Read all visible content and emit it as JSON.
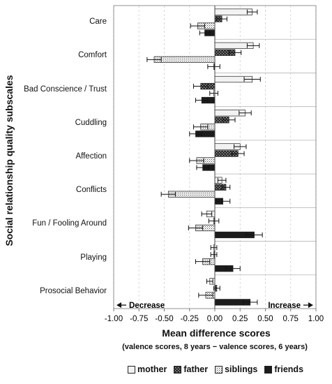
{
  "chart_data": {
    "type": "bar",
    "orientation": "horizontal",
    "ylabel": "Social relationship quality subscales",
    "xlabel": "Mean difference scores",
    "xlabel_sub": "(valence scores, 8 years − valence scores, 6 years)",
    "annotations": {
      "left": "Decrease",
      "right": "Increase"
    },
    "xlim": [
      -1.0,
      1.0
    ],
    "xticks": [
      "-1.00",
      "-0.75",
      "-0.50",
      "-0.25",
      "0.00",
      "0.25",
      "0.50",
      "0.75",
      "1.00"
    ],
    "grid": true,
    "legend_position": "bottom",
    "categories": [
      "Care",
      "Comfort",
      "Bad Conscience / Trust",
      "Cuddling",
      "Affection",
      "Conflicts",
      "Fun / Fooling Around",
      "Playing",
      "Prosocial Behavior"
    ],
    "series": [
      {
        "name": "mother",
        "values": [
          0.37,
          0.38,
          0.37,
          0.3,
          0.25,
          0.07,
          -0.08,
          -0.01,
          -0.05
        ],
        "errors": [
          0.05,
          0.06,
          0.08,
          0.06,
          0.06,
          0.04,
          0.05,
          0.03,
          0.03
        ]
      },
      {
        "name": "father",
        "values": [
          0.07,
          0.2,
          -0.14,
          0.14,
          0.23,
          0.11,
          -0.01,
          -0.01,
          0.02
        ],
        "errors": [
          0.05,
          0.06,
          0.07,
          0.06,
          0.06,
          0.04,
          0.05,
          0.03,
          0.03
        ]
      },
      {
        "name": "siblings",
        "values": [
          -0.17,
          -0.6,
          -0.01,
          -0.14,
          -0.18,
          -0.46,
          -0.19,
          -0.12,
          -0.09
        ],
        "errors": [
          0.07,
          0.07,
          0.04,
          0.07,
          0.07,
          0.07,
          0.07,
          0.07,
          0.07
        ]
      },
      {
        "name": "friends",
        "values": [
          -0.1,
          -0.01,
          -0.13,
          -0.19,
          -0.12,
          0.08,
          0.39,
          0.18,
          0.35
        ],
        "errors": [
          0.05,
          0.06,
          0.06,
          0.06,
          0.06,
          0.07,
          0.08,
          0.07,
          0.07
        ]
      }
    ],
    "colors": {
      "mother": "#f2f2f2",
      "father": "#3a3a3a",
      "siblings": "#e2e2e2",
      "friends": "#1c1c1c",
      "axis": "#777777",
      "grid": "#cfcfcf"
    }
  }
}
